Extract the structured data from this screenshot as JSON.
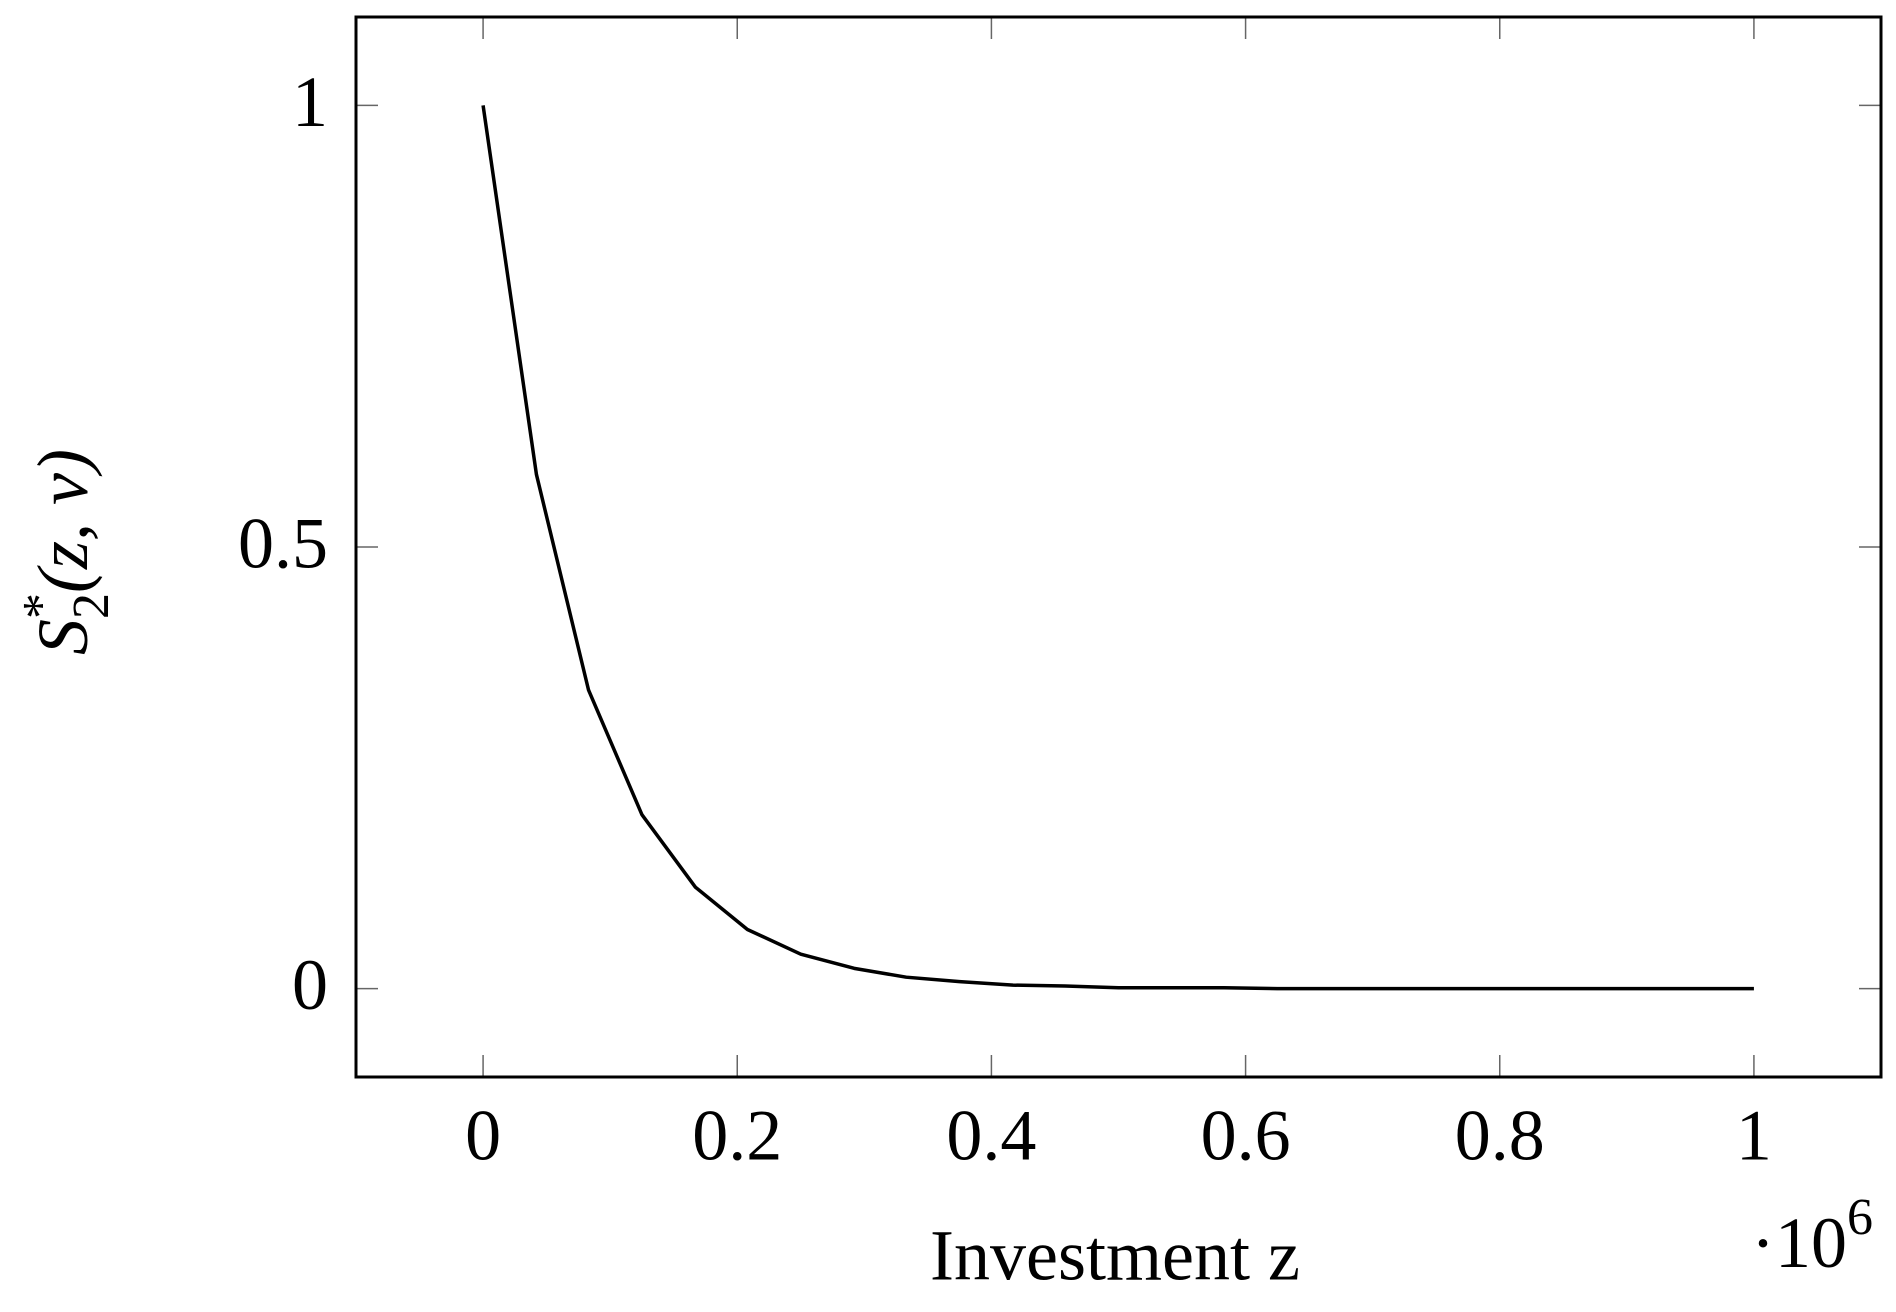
{
  "chart_data": {
    "type": "line",
    "xlabel": "Investment z",
    "ylabel": {
      "base": "S",
      "sup": "*",
      "sub": "2",
      "args": "(z, v)"
    },
    "x_multiplier": {
      "base": "·10",
      "exponent": "6"
    },
    "x": [
      0,
      0.042,
      0.083,
      0.125,
      0.167,
      0.208,
      0.25,
      0.292,
      0.333,
      0.375,
      0.417,
      0.458,
      0.5,
      0.542,
      0.583,
      0.625,
      0.667,
      0.708,
      0.75,
      0.792,
      0.833,
      0.875,
      0.917,
      0.958,
      1
    ],
    "series": [
      {
        "color": "#000000",
        "values": [
          1,
          0.582,
          0.338,
          0.197,
          0.115,
          0.067,
          0.039,
          0.023,
          0.013,
          0.008,
          0.004,
          0.003,
          0.001,
          0.001,
          0.001,
          0,
          0,
          0,
          0,
          0,
          0,
          0,
          0,
          0,
          0
        ]
      }
    ],
    "xlim": [
      -0.1,
      1.1
    ],
    "ylim": [
      -0.1,
      1.1
    ],
    "xticks": [
      0,
      0.2,
      0.4,
      0.6,
      0.8,
      1
    ],
    "yticks": [
      0,
      0.5,
      1
    ],
    "grid": false
  }
}
